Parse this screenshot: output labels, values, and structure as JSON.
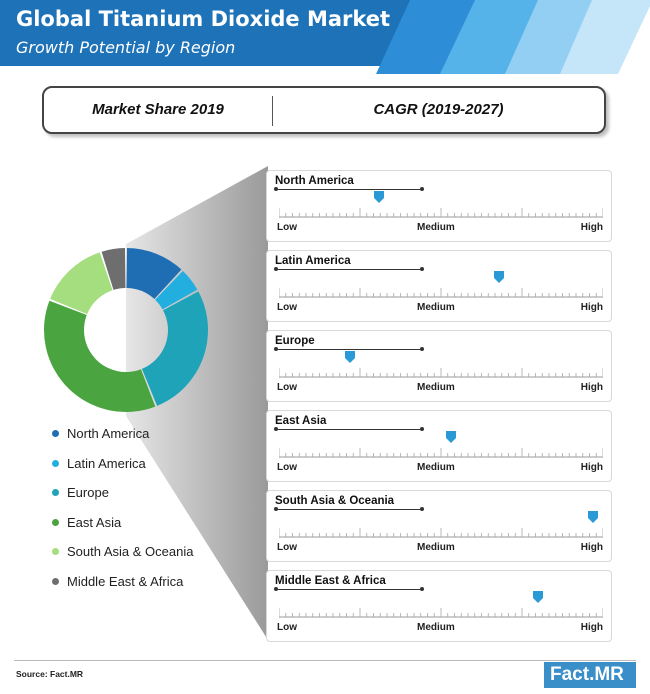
{
  "header": {
    "title": "Global Titanium Dioxide Market",
    "subtitle": "Growth Potential by Region"
  },
  "labels": {
    "left": "Market Share 2019",
    "right": "CAGR (2019-2027)"
  },
  "scale_labels": {
    "low": "Low",
    "medium": "Medium",
    "high": "High"
  },
  "chart_data": [
    {
      "type": "pie",
      "donut": true,
      "title": "Market Share 2019",
      "categories": [
        "North America",
        "Latin America",
        "Europe",
        "East Asia",
        "South Asia & Oceania",
        "Middle East & Africa"
      ],
      "values": [
        12,
        5,
        27,
        37,
        14,
        5
      ],
      "colors": [
        "#1f6eb3",
        "#23aee0",
        "#1ea3b9",
        "#4aa540",
        "#a4de7f",
        "#6e6e6e"
      ],
      "legend": "bottom"
    },
    {
      "type": "scatter",
      "title": "CAGR (2019-2027)",
      "categories": [
        "North America",
        "Latin America",
        "Europe",
        "East Asia",
        "South Asia & Oceania",
        "Middle East & Africa"
      ],
      "values": [
        0.31,
        0.68,
        0.22,
        0.53,
        0.97,
        0.8
      ],
      "scale": [
        "Low",
        "Medium",
        "High"
      ],
      "xlim": [
        0,
        1
      ],
      "marker_color": "#2a9ad6"
    }
  ],
  "footer": {
    "source": "Source: Fact.MR",
    "brand": "Fact.MR"
  }
}
